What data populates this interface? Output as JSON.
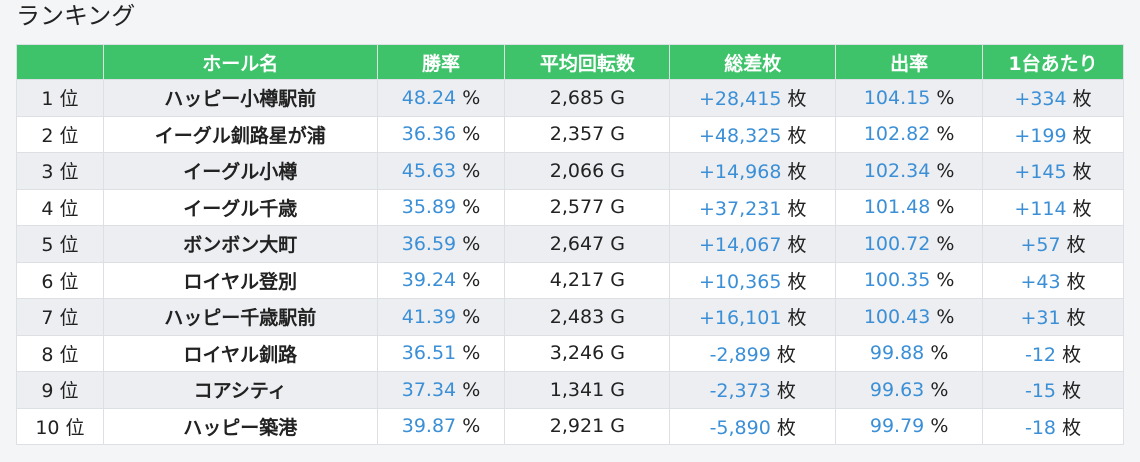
{
  "title": "ランキング",
  "table": {
    "headers": [
      "ホール名",
      "勝率",
      "平均回転数",
      "総差枚",
      "出率",
      "1台あたり"
    ],
    "columns": [
      "rank",
      "hall",
      "win_rate",
      "avg_spins",
      "diff",
      "payout",
      "per_machine"
    ],
    "units": {
      "win_rate": "%",
      "diff": "枚",
      "payout": "%",
      "per_machine": "枚"
    },
    "rows": [
      {
        "rank": "1 位",
        "hall": "ハッピー小樽駅前",
        "win_rate": "48.24",
        "avg_spins": "2,685 G",
        "diff": "+28,415",
        "payout": "104.15",
        "per_machine": "+334"
      },
      {
        "rank": "2 位",
        "hall": "イーグル釧路星が浦",
        "win_rate": "36.36",
        "avg_spins": "2,357 G",
        "diff": "+48,325",
        "payout": "102.82",
        "per_machine": "+199"
      },
      {
        "rank": "3 位",
        "hall": "イーグル小樽",
        "win_rate": "45.63",
        "avg_spins": "2,066 G",
        "diff": "+14,968",
        "payout": "102.34",
        "per_machine": "+145"
      },
      {
        "rank": "4 位",
        "hall": "イーグル千歳",
        "win_rate": "35.89",
        "avg_spins": "2,577 G",
        "diff": "+37,231",
        "payout": "101.48",
        "per_machine": "+114"
      },
      {
        "rank": "5 位",
        "hall": "ボンボン大町",
        "win_rate": "36.59",
        "avg_spins": "2,647 G",
        "diff": "+14,067",
        "payout": "100.72",
        "per_machine": "+57"
      },
      {
        "rank": "6 位",
        "hall": "ロイヤル登別",
        "win_rate": "39.24",
        "avg_spins": "4,217 G",
        "diff": "+10,365",
        "payout": "100.35",
        "per_machine": "+43"
      },
      {
        "rank": "7 位",
        "hall": "ハッピー千歳駅前",
        "win_rate": "41.39",
        "avg_spins": "2,483 G",
        "diff": "+16,101",
        "payout": "100.43",
        "per_machine": "+31"
      },
      {
        "rank": "8 位",
        "hall": "ロイヤル釧路",
        "win_rate": "36.51",
        "avg_spins": "3,246 G",
        "diff": "-2,899",
        "payout": "99.88",
        "per_machine": "-12"
      },
      {
        "rank": "9 位",
        "hall": "コアシティ",
        "win_rate": "37.34",
        "avg_spins": "1,341 G",
        "diff": "-2,373",
        "payout": "99.63",
        "per_machine": "-15"
      },
      {
        "rank": "10 位",
        "hall": "ハッピー築港",
        "win_rate": "39.87",
        "avg_spins": "2,921 G",
        "diff": "-5,890",
        "payout": "99.79",
        "per_machine": "-18"
      }
    ]
  }
}
